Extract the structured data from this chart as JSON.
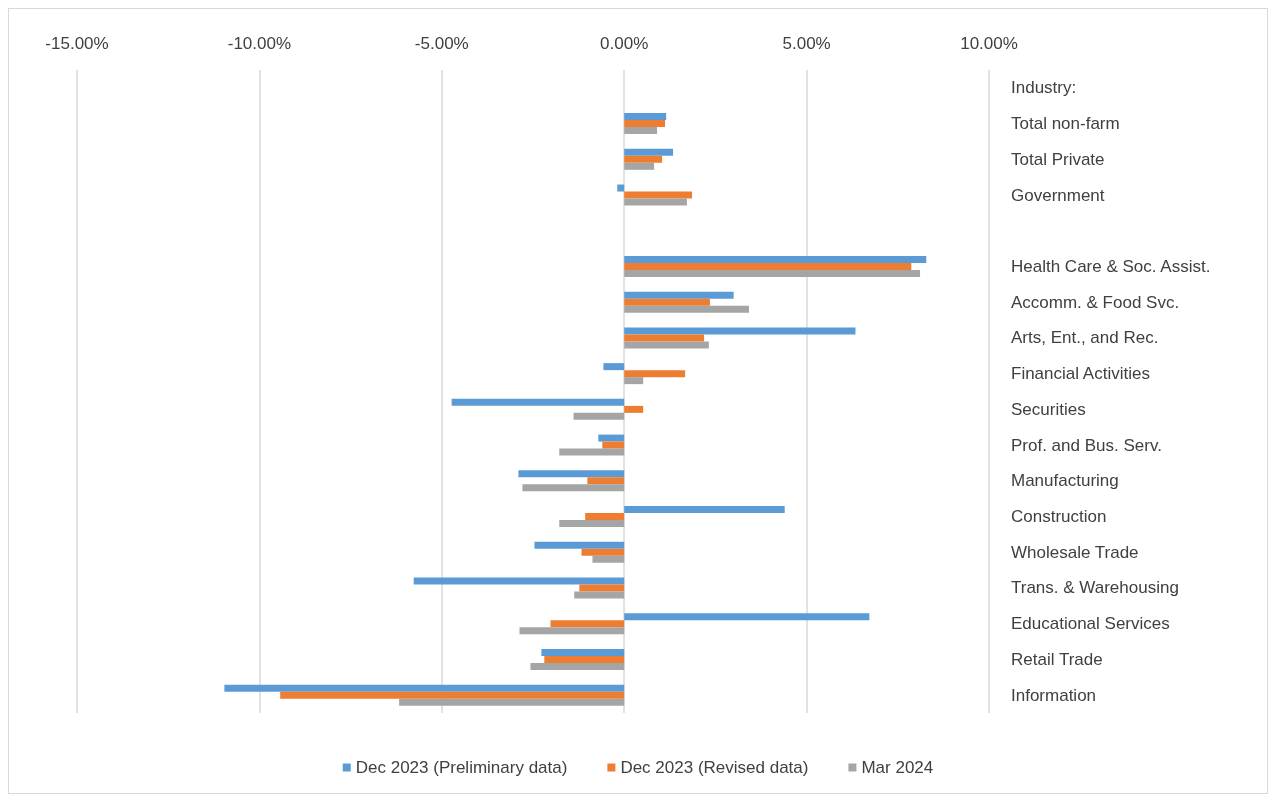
{
  "chart_data": {
    "type": "bar",
    "orientation": "horizontal",
    "ylabel": "Industry:",
    "categories": [
      null,
      "Total non-farm",
      "Total Private",
      "Government",
      null,
      "Health Care & Soc. Assist.",
      "Accomm. & Food Svc.",
      "Arts, Ent., and Rec.",
      "Financial Activities",
      "Securities",
      "Prof. and Bus. Serv.",
      "Manufacturing",
      "Construction",
      "Wholesale Trade",
      "Trans. & Warehousing",
      "Educational Services",
      "Retail Trade",
      "Information"
    ],
    "series": [
      {
        "name": "Dec 2023 (Preliminary data)",
        "color": "#5b9bd5",
        "values": [
          null,
          1.15,
          1.34,
          -0.19,
          null,
          8.28,
          3.0,
          6.34,
          -0.57,
          -4.73,
          -0.71,
          -2.9,
          4.4,
          -2.46,
          -5.77,
          6.72,
          -2.27,
          -10.96
        ]
      },
      {
        "name": "Dec 2023 (Revised data)",
        "color": "#ed7d31",
        "values": [
          null,
          1.12,
          1.04,
          1.86,
          null,
          7.87,
          2.35,
          2.19,
          1.67,
          0.52,
          -0.6,
          -1.01,
          -1.07,
          -1.17,
          -1.23,
          -2.02,
          -2.19,
          -9.43
        ]
      },
      {
        "name": "Mar 2024",
        "color": "#a5a5a5",
        "values": [
          null,
          0.9,
          0.82,
          1.72,
          null,
          8.11,
          3.42,
          2.32,
          0.52,
          -1.39,
          -1.78,
          -2.79,
          -1.78,
          -0.87,
          -1.37,
          -2.87,
          -2.57,
          -6.17
        ]
      }
    ],
    "xlim": [
      -15,
      10
    ],
    "xticks": [
      {
        "value": -15,
        "label": "-15.00%"
      },
      {
        "value": -10,
        "label": "-10.00%"
      },
      {
        "value": -5,
        "label": "-5.00%"
      },
      {
        "value": 0,
        "label": "0.00%"
      },
      {
        "value": 5,
        "label": "5.00%"
      },
      {
        "value": 10,
        "label": "10.00%"
      }
    ],
    "grid": "x",
    "legend": "bottom"
  }
}
